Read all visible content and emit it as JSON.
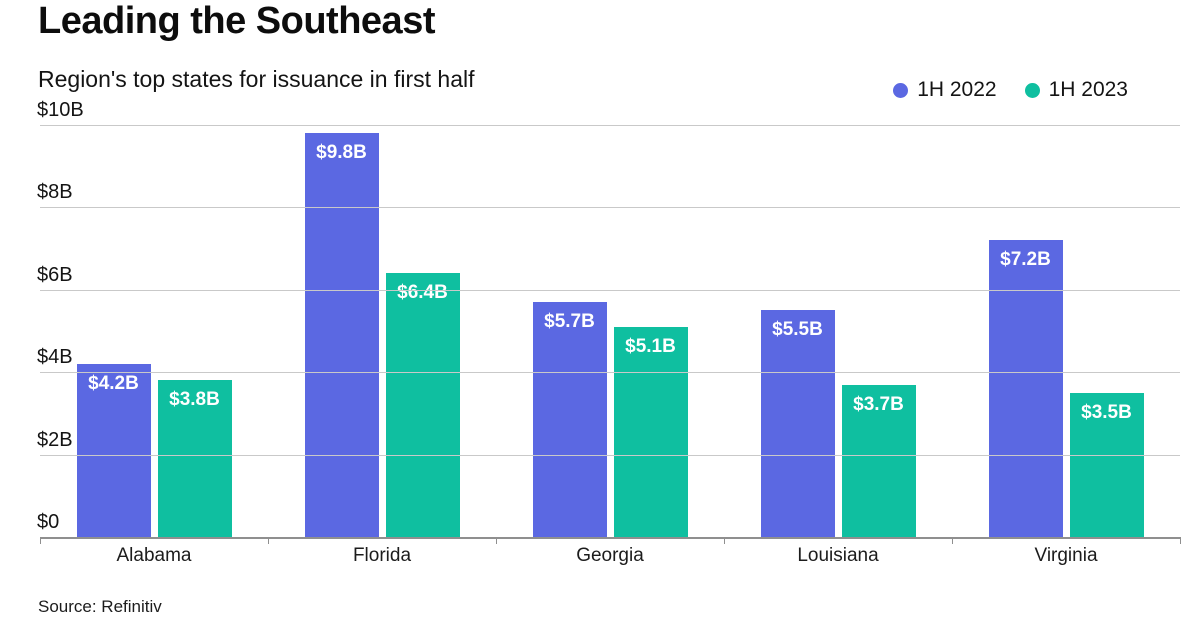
{
  "header": {
    "title": "Leading the Southeast",
    "subtitle": "Region's top states for issuance in first half"
  },
  "footer": {
    "source": "Source: Refinitiv"
  },
  "chart_data": {
    "type": "bar",
    "title": "Leading the Southeast",
    "subtitle": "Region's top states for issuance in first half",
    "categories": [
      "Alabama",
      "Florida",
      "Georgia",
      "Louisiana",
      "Virginia"
    ],
    "series": [
      {
        "name": "1H 2022",
        "color": "#5b68e2",
        "values": [
          4.2,
          9.8,
          5.7,
          5.5,
          7.2
        ],
        "labels": [
          "$4.2B",
          "$9.8B",
          "$5.7B",
          "$5.5B",
          "$7.2B"
        ]
      },
      {
        "name": "1H 2023",
        "color": "#0fbfa0",
        "values": [
          3.8,
          6.4,
          5.1,
          3.7,
          3.5
        ],
        "labels": [
          "$3.8B",
          "$6.4B",
          "$5.1B",
          "$3.7B",
          "$3.5B"
        ]
      }
    ],
    "ylabel": "",
    "xlabel": "",
    "ylim": [
      0,
      10
    ],
    "yticks": {
      "values": [
        0,
        2,
        4,
        6,
        8,
        10
      ],
      "labels": [
        "$0",
        "$2B",
        "$4B",
        "$6B",
        "$8B",
        "$10B"
      ]
    },
    "grid": "horizontal",
    "legend_position": "top-right",
    "source": "Source: Refinitiv"
  }
}
